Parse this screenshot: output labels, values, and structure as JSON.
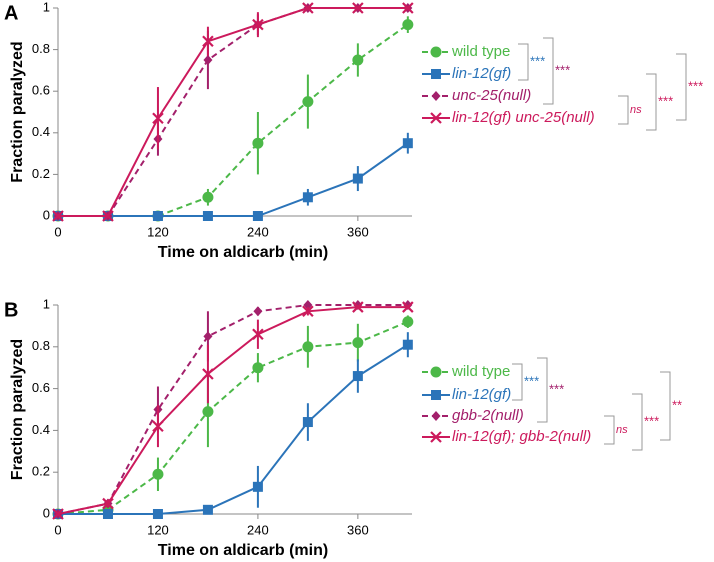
{
  "chart_data": [
    {
      "type": "line",
      "panel_label": "A",
      "xlabel": "Time on aldicarb (min)",
      "ylabel": "Fraction paralyzed",
      "x": [
        0,
        60,
        120,
        180,
        240,
        300,
        360,
        420
      ],
      "xlim": [
        0,
        425
      ],
      "xticks": [
        0,
        120,
        240,
        360
      ],
      "ylim": [
        0,
        1
      ],
      "yticks": [
        0,
        0.2,
        0.4,
        0.6,
        0.8,
        1
      ],
      "series": [
        {
          "name": "wild type",
          "color": "#4cb848",
          "marker": "circle",
          "dashed": true,
          "italic": false,
          "values": [
            0,
            0,
            0,
            0.09,
            0.35,
            0.55,
            0.75,
            0.92
          ],
          "errors": [
            0,
            0,
            0,
            0.04,
            0.15,
            0.13,
            0.08,
            0.04
          ]
        },
        {
          "name": "lin-12(gf)",
          "color": "#2b74b9",
          "marker": "square",
          "dashed": false,
          "italic": true,
          "values": [
            0,
            0,
            0,
            0,
            0,
            0.09,
            0.18,
            0.35
          ],
          "errors": [
            0,
            0,
            0,
            0,
            0,
            0.04,
            0.06,
            0.05
          ]
        },
        {
          "name": "unc-25(null)",
          "color": "#a3206b",
          "marker": "diamond",
          "dashed": true,
          "italic": true,
          "values": [
            0,
            0,
            0.37,
            0.75,
            0.92,
            1,
            1,
            1
          ],
          "errors": [
            0,
            0,
            0.08,
            0.14,
            0.05,
            0,
            0,
            0
          ]
        },
        {
          "name": "lin-12(gf) unc-25(null)",
          "color": "#cc1a5c",
          "marker": "x",
          "dashed": false,
          "italic": true,
          "values": [
            0,
            0,
            0.47,
            0.84,
            0.92,
            1,
            1,
            1
          ],
          "errors": [
            0,
            0,
            0.15,
            0.07,
            0.06,
            0,
            0,
            0
          ]
        }
      ],
      "annotations": [
        {
          "text": "***",
          "color": "#2b74b9"
        },
        {
          "text": "***",
          "color": "#a3206b"
        },
        {
          "text": "ns",
          "color": "#cc1a5c"
        },
        {
          "text": "***",
          "color": "#cc1a5c"
        },
        {
          "text": "***",
          "color": "#cc1a5c"
        }
      ]
    },
    {
      "type": "line",
      "panel_label": "B",
      "xlabel": "Time on aldicarb (min)",
      "ylabel": "Fraction paralyzed",
      "x": [
        0,
        60,
        120,
        180,
        240,
        300,
        360,
        420
      ],
      "xlim": [
        0,
        425
      ],
      "xticks": [
        0,
        120,
        240,
        360
      ],
      "ylim": [
        0,
        1
      ],
      "yticks": [
        0,
        0.2,
        0.4,
        0.6,
        0.8,
        1
      ],
      "series": [
        {
          "name": "wild type",
          "color": "#4cb848",
          "marker": "circle",
          "dashed": true,
          "italic": false,
          "values": [
            0,
            0.02,
            0.19,
            0.49,
            0.7,
            0.8,
            0.82,
            0.92
          ],
          "errors": [
            0,
            0.01,
            0.08,
            0.17,
            0.07,
            0.1,
            0.09,
            0.03
          ]
        },
        {
          "name": "lin-12(gf)",
          "color": "#2b74b9",
          "marker": "square",
          "dashed": false,
          "italic": true,
          "values": [
            0,
            0,
            0,
            0.02,
            0.13,
            0.44,
            0.66,
            0.81
          ],
          "errors": [
            0,
            0,
            0,
            0.01,
            0.1,
            0.09,
            0.08,
            0.06
          ]
        },
        {
          "name": "gbb-2(null)",
          "color": "#a3206b",
          "marker": "diamond",
          "dashed": true,
          "italic": true,
          "values": [
            0,
            0.05,
            0.5,
            0.85,
            0.97,
            1,
            1,
            1
          ],
          "errors": [
            0,
            0.02,
            0.11,
            0.12,
            0.02,
            0,
            0,
            0
          ]
        },
        {
          "name": "lin-12(gf); gbb-2(null)",
          "color": "#cc1a5c",
          "marker": "x",
          "dashed": false,
          "italic": true,
          "values": [
            0,
            0.05,
            0.42,
            0.67,
            0.86,
            0.97,
            0.99,
            0.99
          ],
          "errors": [
            0,
            0.02,
            0.1,
            0.14,
            0.07,
            0.02,
            0.01,
            0
          ]
        }
      ],
      "annotations": [
        {
          "text": "***",
          "color": "#2b74b9"
        },
        {
          "text": "***",
          "color": "#a3206b"
        },
        {
          "text": "ns",
          "color": "#cc1a5c"
        },
        {
          "text": "***",
          "color": "#cc1a5c"
        },
        {
          "text": "**",
          "color": "#cc1a5c"
        }
      ]
    }
  ]
}
